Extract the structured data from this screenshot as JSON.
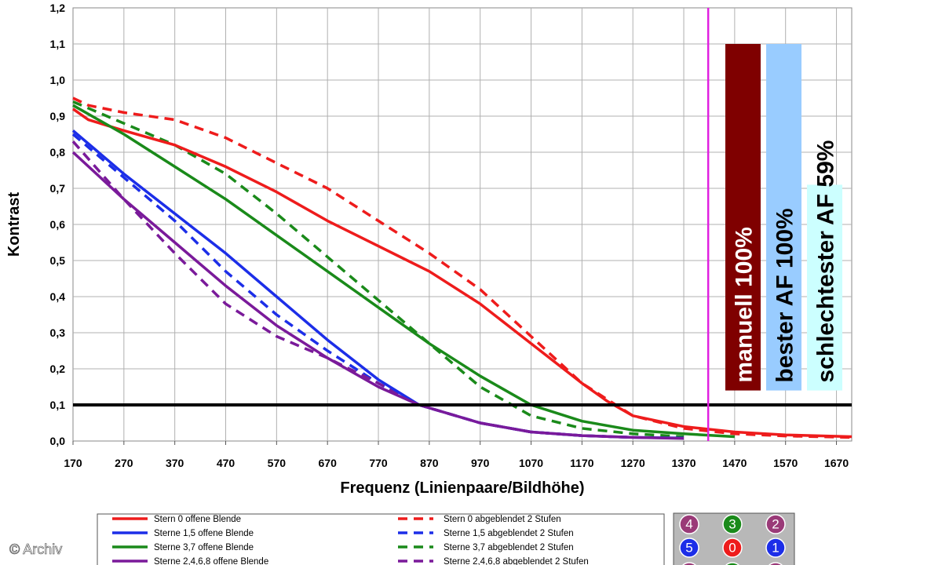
{
  "chart_data": {
    "type": "line",
    "title": "",
    "xlabel": "Frequenz (Linienpaare/Bildhöhe)",
    "ylabel": "Kontrast",
    "xlim": [
      170,
      1700
    ],
    "ylim": [
      0,
      1.2
    ],
    "x_ticks": [
      "170",
      "270",
      "370",
      "470",
      "570",
      "670",
      "770",
      "870",
      "970",
      "1070",
      "1170",
      "1270",
      "1370",
      "1470",
      "1570",
      "1670"
    ],
    "y_ticks": [
      "0,0",
      "0,1",
      "0,2",
      "0,3",
      "0,4",
      "0,5",
      "0,6",
      "0,7",
      "0,8",
      "0,9",
      "1,0",
      "1,1",
      "1,2"
    ],
    "grid": true,
    "reference_lines": [
      {
        "orientation": "horizontal",
        "value": 0.1,
        "color": "#000000"
      },
      {
        "orientation": "vertical",
        "value": 1418,
        "color": "#e020e0"
      }
    ],
    "series": [
      {
        "name": "Stern 0 offene Blende",
        "color": "#ee1c1c",
        "dash": false,
        "points": [
          [
            170,
            0.92
          ],
          [
            200,
            0.89
          ],
          [
            270,
            0.86
          ],
          [
            370,
            0.82
          ],
          [
            470,
            0.76
          ],
          [
            570,
            0.69
          ],
          [
            670,
            0.61
          ],
          [
            770,
            0.54
          ],
          [
            870,
            0.47
          ],
          [
            970,
            0.38
          ],
          [
            1070,
            0.27
          ],
          [
            1170,
            0.16
          ],
          [
            1220,
            0.11
          ],
          [
            1270,
            0.07
          ],
          [
            1370,
            0.04
          ],
          [
            1470,
            0.025
          ],
          [
            1570,
            0.017
          ],
          [
            1700,
            0.012
          ]
        ]
      },
      {
        "name": "Stern 0 abgeblendet 2 Stufen",
        "color": "#ee1c1c",
        "dash": true,
        "points": [
          [
            170,
            0.95
          ],
          [
            200,
            0.93
          ],
          [
            270,
            0.91
          ],
          [
            370,
            0.89
          ],
          [
            470,
            0.84
          ],
          [
            570,
            0.77
          ],
          [
            670,
            0.7
          ],
          [
            770,
            0.61
          ],
          [
            870,
            0.52
          ],
          [
            970,
            0.42
          ],
          [
            1070,
            0.29
          ],
          [
            1170,
            0.16
          ],
          [
            1270,
            0.07
          ],
          [
            1370,
            0.035
          ],
          [
            1470,
            0.02
          ],
          [
            1570,
            0.014
          ],
          [
            1700,
            0.01
          ]
        ]
      },
      {
        "name": "Sterne 1,5 offene Blende",
        "color": "#1c2ee8",
        "dash": false,
        "points": [
          [
            170,
            0.86
          ],
          [
            270,
            0.74
          ],
          [
            370,
            0.63
          ],
          [
            470,
            0.52
          ],
          [
            570,
            0.4
          ],
          [
            670,
            0.28
          ],
          [
            770,
            0.17
          ],
          [
            850,
            0.1
          ],
          [
            970,
            0.05
          ],
          [
            1070,
            0.025
          ],
          [
            1170,
            0.015
          ],
          [
            1270,
            0.01
          ],
          [
            1370,
            0.008
          ]
        ]
      },
      {
        "name": "Sterne 1,5 abgeblendet 2 Stufen",
        "color": "#1c2ee8",
        "dash": true,
        "points": [
          [
            170,
            0.85
          ],
          [
            270,
            0.73
          ],
          [
            370,
            0.61
          ],
          [
            470,
            0.47
          ],
          [
            570,
            0.35
          ],
          [
            670,
            0.25
          ],
          [
            770,
            0.16
          ],
          [
            850,
            0.1
          ],
          [
            970,
            0.05
          ],
          [
            1070,
            0.025
          ],
          [
            1170,
            0.015
          ],
          [
            1270,
            0.01
          ]
        ]
      },
      {
        "name": "Sterne 3,7 offene Blende",
        "color": "#1a8a1a",
        "dash": false,
        "points": [
          [
            170,
            0.93
          ],
          [
            270,
            0.85
          ],
          [
            370,
            0.76
          ],
          [
            470,
            0.67
          ],
          [
            570,
            0.57
          ],
          [
            670,
            0.47
          ],
          [
            770,
            0.37
          ],
          [
            870,
            0.27
          ],
          [
            970,
            0.18
          ],
          [
            1070,
            0.1
          ],
          [
            1170,
            0.055
          ],
          [
            1270,
            0.03
          ],
          [
            1370,
            0.02
          ],
          [
            1470,
            0.012
          ]
        ]
      },
      {
        "name": "Sterne 3,7 abgeblendet 2 Stufen",
        "color": "#1a8a1a",
        "dash": true,
        "points": [
          [
            170,
            0.94
          ],
          [
            270,
            0.88
          ],
          [
            370,
            0.82
          ],
          [
            470,
            0.74
          ],
          [
            570,
            0.63
          ],
          [
            670,
            0.51
          ],
          [
            770,
            0.39
          ],
          [
            870,
            0.27
          ],
          [
            970,
            0.15
          ],
          [
            1070,
            0.07
          ],
          [
            1170,
            0.035
          ],
          [
            1270,
            0.02
          ],
          [
            1370,
            0.012
          ]
        ]
      },
      {
        "name": "Sterne 2,4,6,8 offene Blende",
        "color": "#7a1a9a",
        "dash": false,
        "points": [
          [
            170,
            0.8
          ],
          [
            270,
            0.67
          ],
          [
            370,
            0.55
          ],
          [
            470,
            0.43
          ],
          [
            570,
            0.32
          ],
          [
            670,
            0.23
          ],
          [
            770,
            0.15
          ],
          [
            850,
            0.1
          ],
          [
            970,
            0.05
          ],
          [
            1070,
            0.025
          ],
          [
            1170,
            0.015
          ],
          [
            1270,
            0.01
          ],
          [
            1370,
            0.007
          ]
        ]
      },
      {
        "name": "Sterne 2,4,6,8 abgeblendet 2 Stufen",
        "color": "#7a1a9a",
        "dash": true,
        "points": [
          [
            170,
            0.83
          ],
          [
            270,
            0.67
          ],
          [
            370,
            0.52
          ],
          [
            470,
            0.38
          ],
          [
            570,
            0.29
          ],
          [
            670,
            0.23
          ],
          [
            770,
            0.16
          ],
          [
            850,
            0.1
          ],
          [
            970,
            0.05
          ],
          [
            1070,
            0.025
          ],
          [
            1170,
            0.015
          ],
          [
            1270,
            0.01
          ]
        ]
      }
    ],
    "bars": [
      {
        "label": "manuell 100%",
        "fill": "#7f0000",
        "text_color": "#ffffff",
        "value": 1.1
      },
      {
        "label": "bester AF 100%",
        "fill": "#99ccff",
        "text_color": "#000000",
        "value": 1.1
      },
      {
        "label": "schlechtester AF 59%",
        "fill": "#ccffff",
        "text_color": "#000000",
        "value": 0.71
      }
    ]
  },
  "legend": {
    "left": [
      "Stern 0 offene Blende",
      "Sterne 1,5 offene Blende",
      "Sterne 3,7 offene Blende",
      "Sterne 2,4,6,8 offene Blende"
    ],
    "right": [
      "Stern 0 abgeblendet 2 Stufen",
      "Sterne 1,5 abgeblendet 2 Stufen",
      "Sterne 3,7 abgeblendet 2 Stufen",
      "Sterne 2,4,6,8 abgeblendet 2 Stufen"
    ],
    "colors": [
      "#ee1c1c",
      "#1c2ee8",
      "#1a8a1a",
      "#7a1a9a"
    ]
  },
  "star_diagram": {
    "rows": [
      [
        {
          "label": "4",
          "color": "#9a3a78"
        },
        {
          "label": "3",
          "color": "#1a8a1a"
        },
        {
          "label": "2",
          "color": "#9a3a78"
        }
      ],
      [
        {
          "label": "5",
          "color": "#1c2ee8"
        },
        {
          "label": "0",
          "color": "#ee1c1c"
        },
        {
          "label": "1",
          "color": "#1c2ee8"
        }
      ]
    ]
  },
  "credit": "© Archiv"
}
